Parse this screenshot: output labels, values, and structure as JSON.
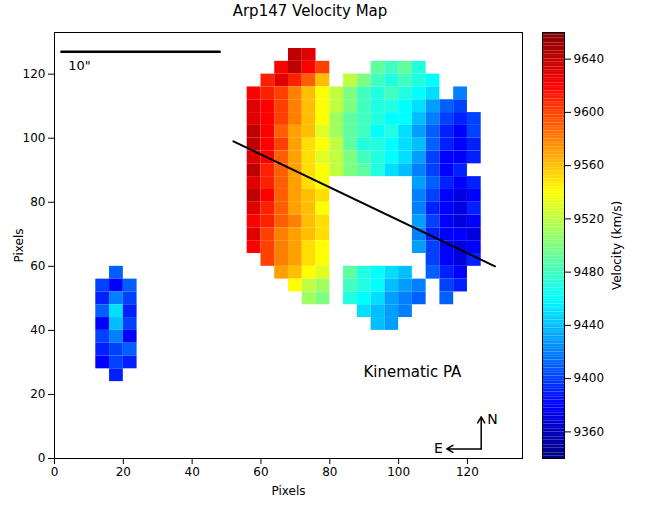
{
  "chart_data": {
    "type": "heatmap",
    "title": "Arp147 Velocity Map",
    "x_label": "Pixels",
    "y_label": "Pixels",
    "xlim": [
      0,
      136
    ],
    "ylim": [
      0,
      133
    ],
    "xticks": [
      0,
      20,
      40,
      60,
      80,
      100,
      120
    ],
    "yticks": [
      0,
      20,
      40,
      60,
      80,
      100,
      120
    ],
    "pixel_bin": 4,
    "cell_rows": [
      [
        124,
        68,
        [
          9640,
          9630
        ]
      ],
      [
        120,
        64,
        [
          9620,
          9640,
          9620,
          9600
        ]
      ],
      [
        120,
        92,
        [
          9490,
          9480,
          9490,
          9470
        ]
      ],
      [
        116,
        60,
        [
          9610,
          9630,
          9610,
          9590,
          9560
        ]
      ],
      [
        116,
        84,
        [
          9520,
          9500,
          9480,
          9470,
          9480,
          9470,
          9460
        ]
      ],
      [
        112,
        56,
        [
          9620,
          9610,
          9600,
          9580,
          9560,
          9540,
          9520,
          9500,
          9480,
          9470,
          9480,
          9470,
          9460,
          9450
        ]
      ],
      [
        112,
        116,
        [
          9420
        ]
      ],
      [
        108,
        56,
        [
          9630,
          9620,
          9600,
          9580,
          9560,
          9540,
          9520,
          9500,
          9480,
          9470,
          9470,
          9460,
          9450,
          9430,
          9410,
          9400
        ]
      ],
      [
        104,
        56,
        [
          9630,
          9620,
          9600,
          9580,
          9560,
          9540,
          9510,
          9490,
          9480,
          9470,
          9460,
          9460,
          9440,
          9420,
          9400,
          9390,
          9400
        ]
      ],
      [
        100,
        56,
        [
          9640,
          9620,
          9590,
          9570,
          9560,
          9530,
          9510,
          9490,
          9480,
          9460,
          9470,
          9450,
          9430,
          9410,
          9390,
          9380,
          9400
        ]
      ],
      [
        96,
        56,
        [
          9640,
          9620,
          9600,
          9570,
          9550,
          9540,
          9520,
          9490,
          9470,
          9470,
          9460,
          9450,
          9440,
          9410,
          9390,
          9380,
          9390
        ]
      ],
      [
        92,
        56,
        [
          9630,
          9620,
          9590,
          9570,
          9550,
          9530,
          9520,
          9500,
          9480,
          9470,
          9460,
          9450,
          9430,
          9400,
          9380,
          9380,
          9390
        ]
      ],
      [
        88,
        56,
        [
          9640,
          9610,
          9590,
          9570,
          9550,
          9540,
          9520,
          9500,
          9490,
          9470,
          9450,
          9440,
          9420,
          9400,
          9380,
          9390
        ]
      ],
      [
        84,
        56,
        [
          9630,
          9610,
          9590,
          9570,
          9550,
          9540
        ]
      ],
      [
        84,
        104,
        [
          9430,
          9410,
          9390,
          9380,
          9390
        ]
      ],
      [
        80,
        56,
        [
          9640,
          9620,
          9590,
          9570,
          9560,
          9550
        ]
      ],
      [
        80,
        104,
        [
          9420,
          9400,
          9380,
          9370,
          9380
        ]
      ],
      [
        76,
        56,
        [
          9630,
          9610,
          9590,
          9570,
          9560,
          9540
        ]
      ],
      [
        76,
        104,
        [
          9420,
          9390,
          9380,
          9370,
          9390
        ]
      ],
      [
        72,
        56,
        [
          9620,
          9610,
          9590,
          9580,
          9560,
          9550
        ]
      ],
      [
        72,
        104,
        [
          9430,
          9400,
          9380,
          9370,
          9380
        ]
      ],
      [
        68,
        56,
        [
          9630,
          9600,
          9580,
          9570,
          9560,
          9550
        ]
      ],
      [
        68,
        104,
        [
          9420,
          9390,
          9380,
          9380,
          9370
        ]
      ],
      [
        64,
        56,
        [
          9620,
          9600,
          9580,
          9570,
          9550,
          9540
        ]
      ],
      [
        64,
        104,
        [
          9430,
          9400,
          9380,
          9370,
          9380
        ]
      ],
      [
        60,
        60,
        [
          9600,
          9580,
          9570,
          9550,
          9540
        ]
      ],
      [
        60,
        108,
        [
          9400,
          9380,
          9370,
          9390
        ]
      ],
      [
        56,
        64,
        [
          9570,
          9560,
          9540,
          9530
        ]
      ],
      [
        56,
        84,
        [
          9490,
          9470,
          9460,
          9450,
          9440
        ]
      ],
      [
        56,
        108,
        [
          9410,
          9390,
          9380
        ]
      ],
      [
        52,
        68,
        [
          9540,
          9520,
          9510
        ]
      ],
      [
        52,
        84,
        [
          9480,
          9470,
          9460,
          9440,
          9430,
          9420
        ]
      ],
      [
        52,
        112,
        [
          9400,
          9390
        ]
      ],
      [
        48,
        72,
        [
          9510,
          9500
        ]
      ],
      [
        48,
        84,
        [
          9470,
          9460,
          9450,
          9430,
          9420,
          9410
        ]
      ],
      [
        48,
        112,
        [
          9410
        ]
      ],
      [
        44,
        88,
        [
          9450,
          9440,
          9430,
          9420
        ]
      ],
      [
        40,
        92,
        [
          9440,
          9430
        ]
      ],
      [
        56,
        16,
        [
          9410
        ]
      ],
      [
        52,
        12,
        [
          9400,
          9380,
          9410
        ]
      ],
      [
        48,
        12,
        [
          9390,
          9420,
          9400
        ]
      ],
      [
        44,
        12,
        [
          9410,
          9450,
          9390
        ]
      ],
      [
        40,
        12,
        [
          9380,
          9440,
          9400
        ]
      ],
      [
        36,
        12,
        [
          9400,
          9420,
          9380
        ]
      ],
      [
        32,
        12,
        [
          9390,
          9400,
          9410
        ]
      ],
      [
        28,
        12,
        [
          9380,
          9400,
          9390
        ]
      ],
      [
        24,
        16,
        [
          9390
        ]
      ]
    ],
    "colorbar": {
      "label": "Velocity (km/s)",
      "range": [
        9340,
        9660
      ],
      "ticks": [
        9360,
        9400,
        9440,
        9480,
        9520,
        9560,
        9600,
        9640
      ]
    },
    "kinematic_pa_line": {
      "x": [
        52,
        128
      ],
      "y": [
        99,
        60
      ]
    },
    "annotations": [
      {
        "text": "Kinematic PA",
        "x": 104,
        "y": 27
      }
    ],
    "scale_bar": {
      "text": "10\"",
      "x": [
        2,
        48
      ],
      "y": 127
    },
    "compass": {
      "north": "N",
      "east": "E",
      "x": 124,
      "y": 3
    }
  }
}
